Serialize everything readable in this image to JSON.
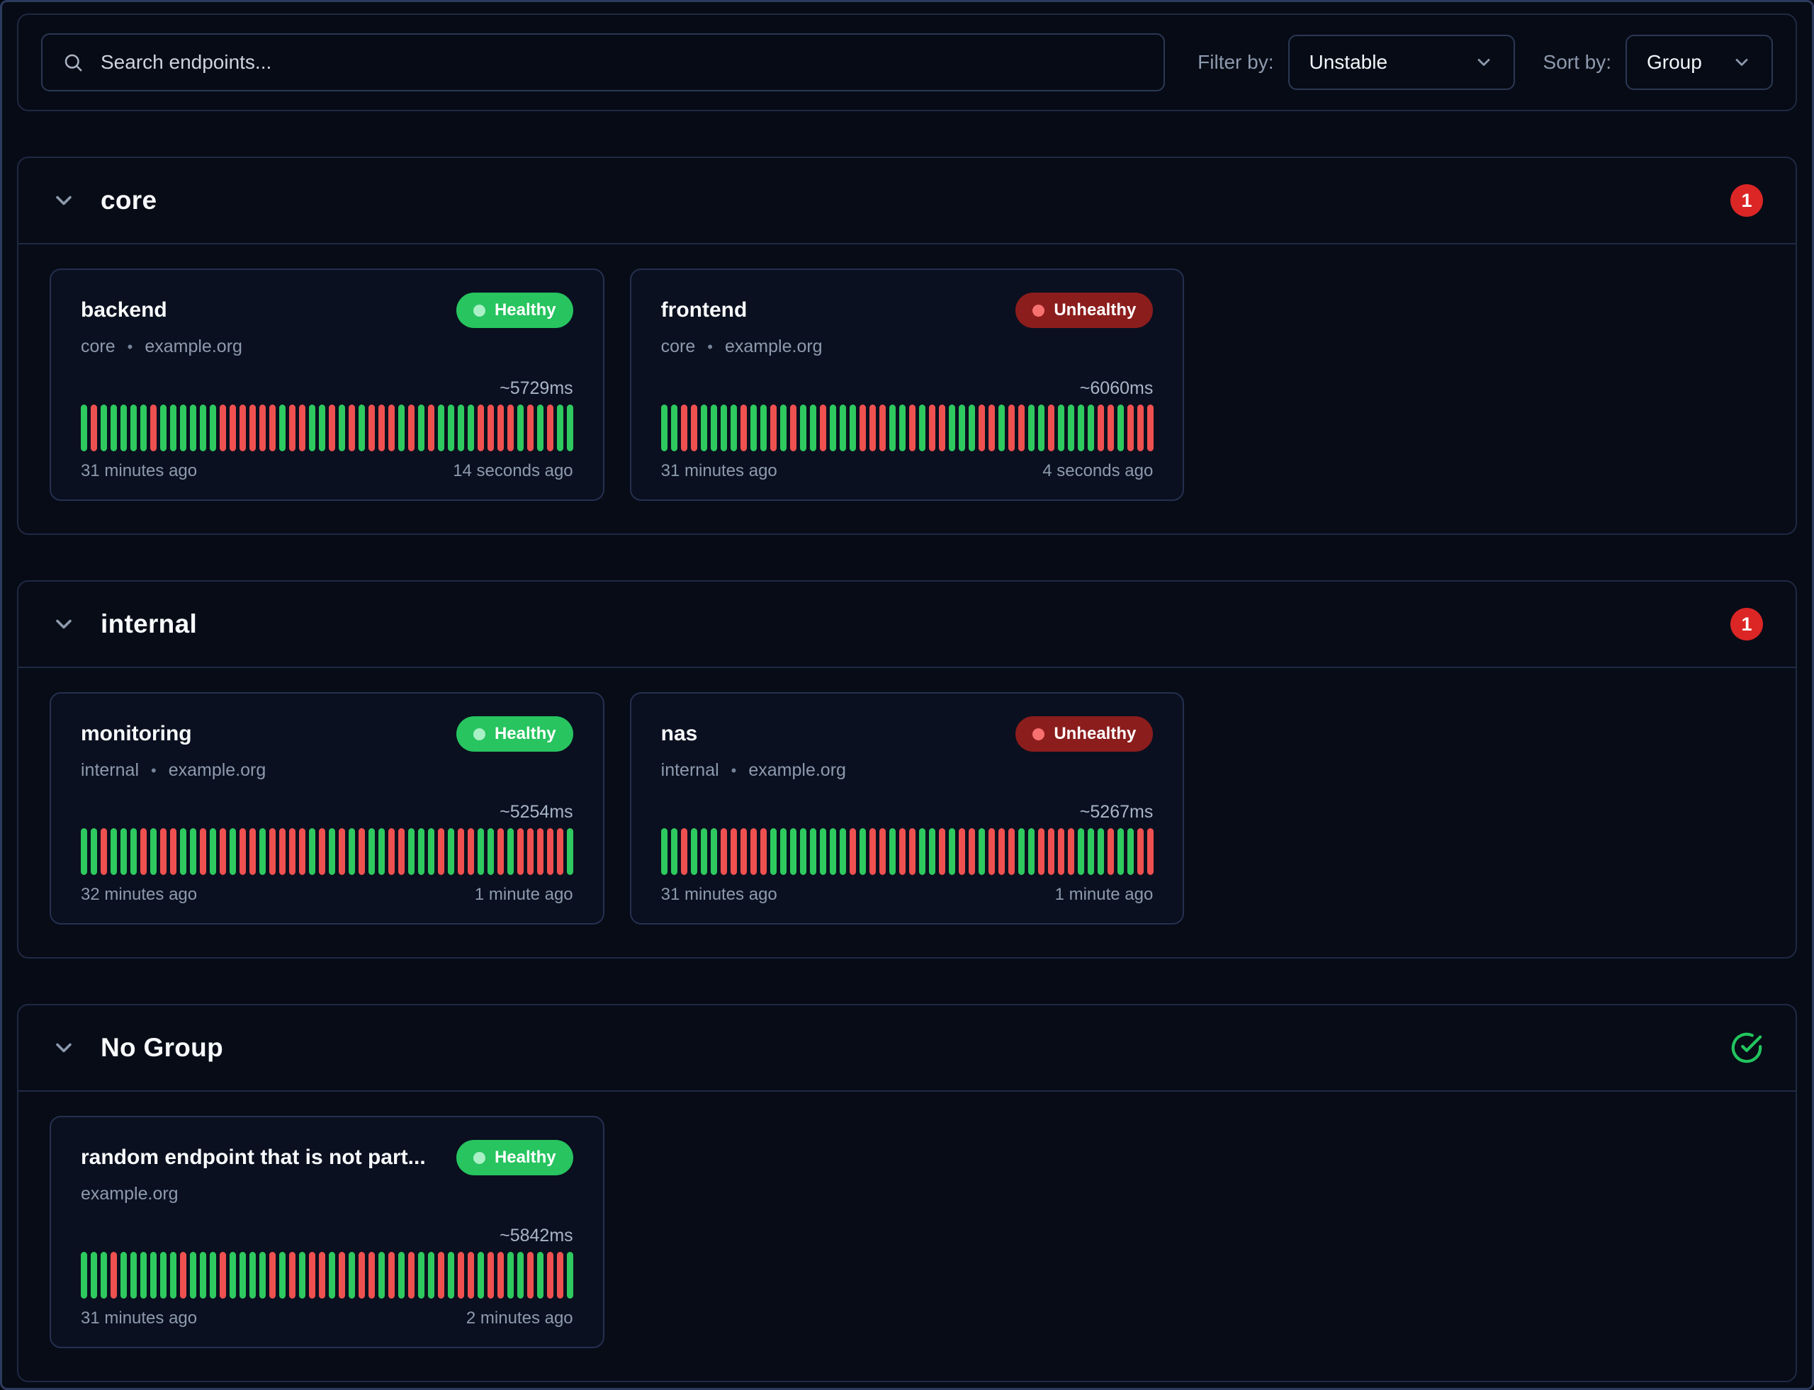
{
  "toolbar": {
    "search_placeholder": "Search endpoints...",
    "filter_label": "Filter by:",
    "filter_value": "Unstable",
    "sort_label": "Sort by:",
    "sort_value": "Group"
  },
  "colors": {
    "healthy_badge": "#27c45f",
    "unhealthy_badge": "#8c1d1d",
    "bar_up": "#2ec95f",
    "bar_down": "#ef5050",
    "count_badge": "#dc2626",
    "check_icon": "#22c55e"
  },
  "groups": [
    {
      "name": "core",
      "indicator": {
        "type": "count",
        "value": "1"
      },
      "endpoints": [
        {
          "name": "backend",
          "status": "Healthy",
          "meta": [
            "core",
            "example.org"
          ],
          "response_time": "~5729ms",
          "history": "GRGGGGGRGGGGGGRRRRRRGRRGGRGRGRRRGRGRGGGGRRRRGRGRGG",
          "oldest": "31 minutes ago",
          "newest": "14 seconds ago"
        },
        {
          "name": "frontend",
          "status": "Unhealthy",
          "meta": [
            "core",
            "example.org"
          ],
          "response_time": "~6060ms",
          "history": "GGRRGGGGRGGRGRGGRGGGRRRGGRGRRGGGRRGRRGGRGGGGRRGRRR",
          "oldest": "31 minutes ago",
          "newest": "4 seconds ago"
        }
      ]
    },
    {
      "name": "internal",
      "indicator": {
        "type": "count",
        "value": "1"
      },
      "endpoints": [
        {
          "name": "monitoring",
          "status": "Healthy",
          "meta": [
            "internal",
            "example.org"
          ],
          "response_time": "~5254ms",
          "history": "GGRGGGRGRRGGRGRGRRGRRRRGRGRGRGGRRGGGRGRRGGRGRRRRRG",
          "oldest": "32 minutes ago",
          "newest": "1 minute ago"
        },
        {
          "name": "nas",
          "status": "Unhealthy",
          "meta": [
            "internal",
            "example.org"
          ],
          "response_time": "~5267ms",
          "history": "GGRGGGRRRRRGGGGGGGGRGRRGRRGGRGRRGRRRGGRRRRGGGRGGRR",
          "oldest": "31 minutes ago",
          "newest": "1 minute ago"
        }
      ]
    },
    {
      "name": "No Group",
      "indicator": {
        "type": "check"
      },
      "endpoints": [
        {
          "name": "random endpoint that is not part...",
          "status": "Healthy",
          "meta": [
            "example.org"
          ],
          "response_time": "~5842ms",
          "history": "GGGRGGGGGGRGGGRGGGGRGRGRRGRGRRGRGRGGRGRRGRRGGRGRRG",
          "oldest": "31 minutes ago",
          "newest": "2 minutes ago"
        }
      ]
    }
  ]
}
